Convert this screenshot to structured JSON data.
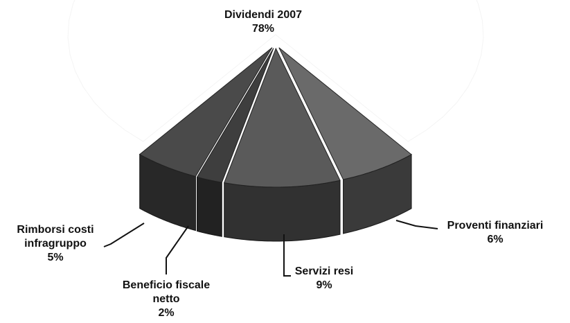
{
  "chart_data": {
    "type": "pie",
    "categories": [
      "Dividendi 2007",
      "Proventi finanziari",
      "Servizi resi",
      "Beneficio fiscale netto",
      "Rimborsi costi infragruppo"
    ],
    "values": [
      78,
      6,
      9,
      2,
      5
    ],
    "value_labels": [
      "78%",
      "6%",
      "9%",
      "2%",
      "5%"
    ],
    "colors": [
      "#ffffff",
      "#6a6a6a",
      "#5a5a5a",
      "#3e3e3e",
      "#4a4a4a"
    ]
  }
}
